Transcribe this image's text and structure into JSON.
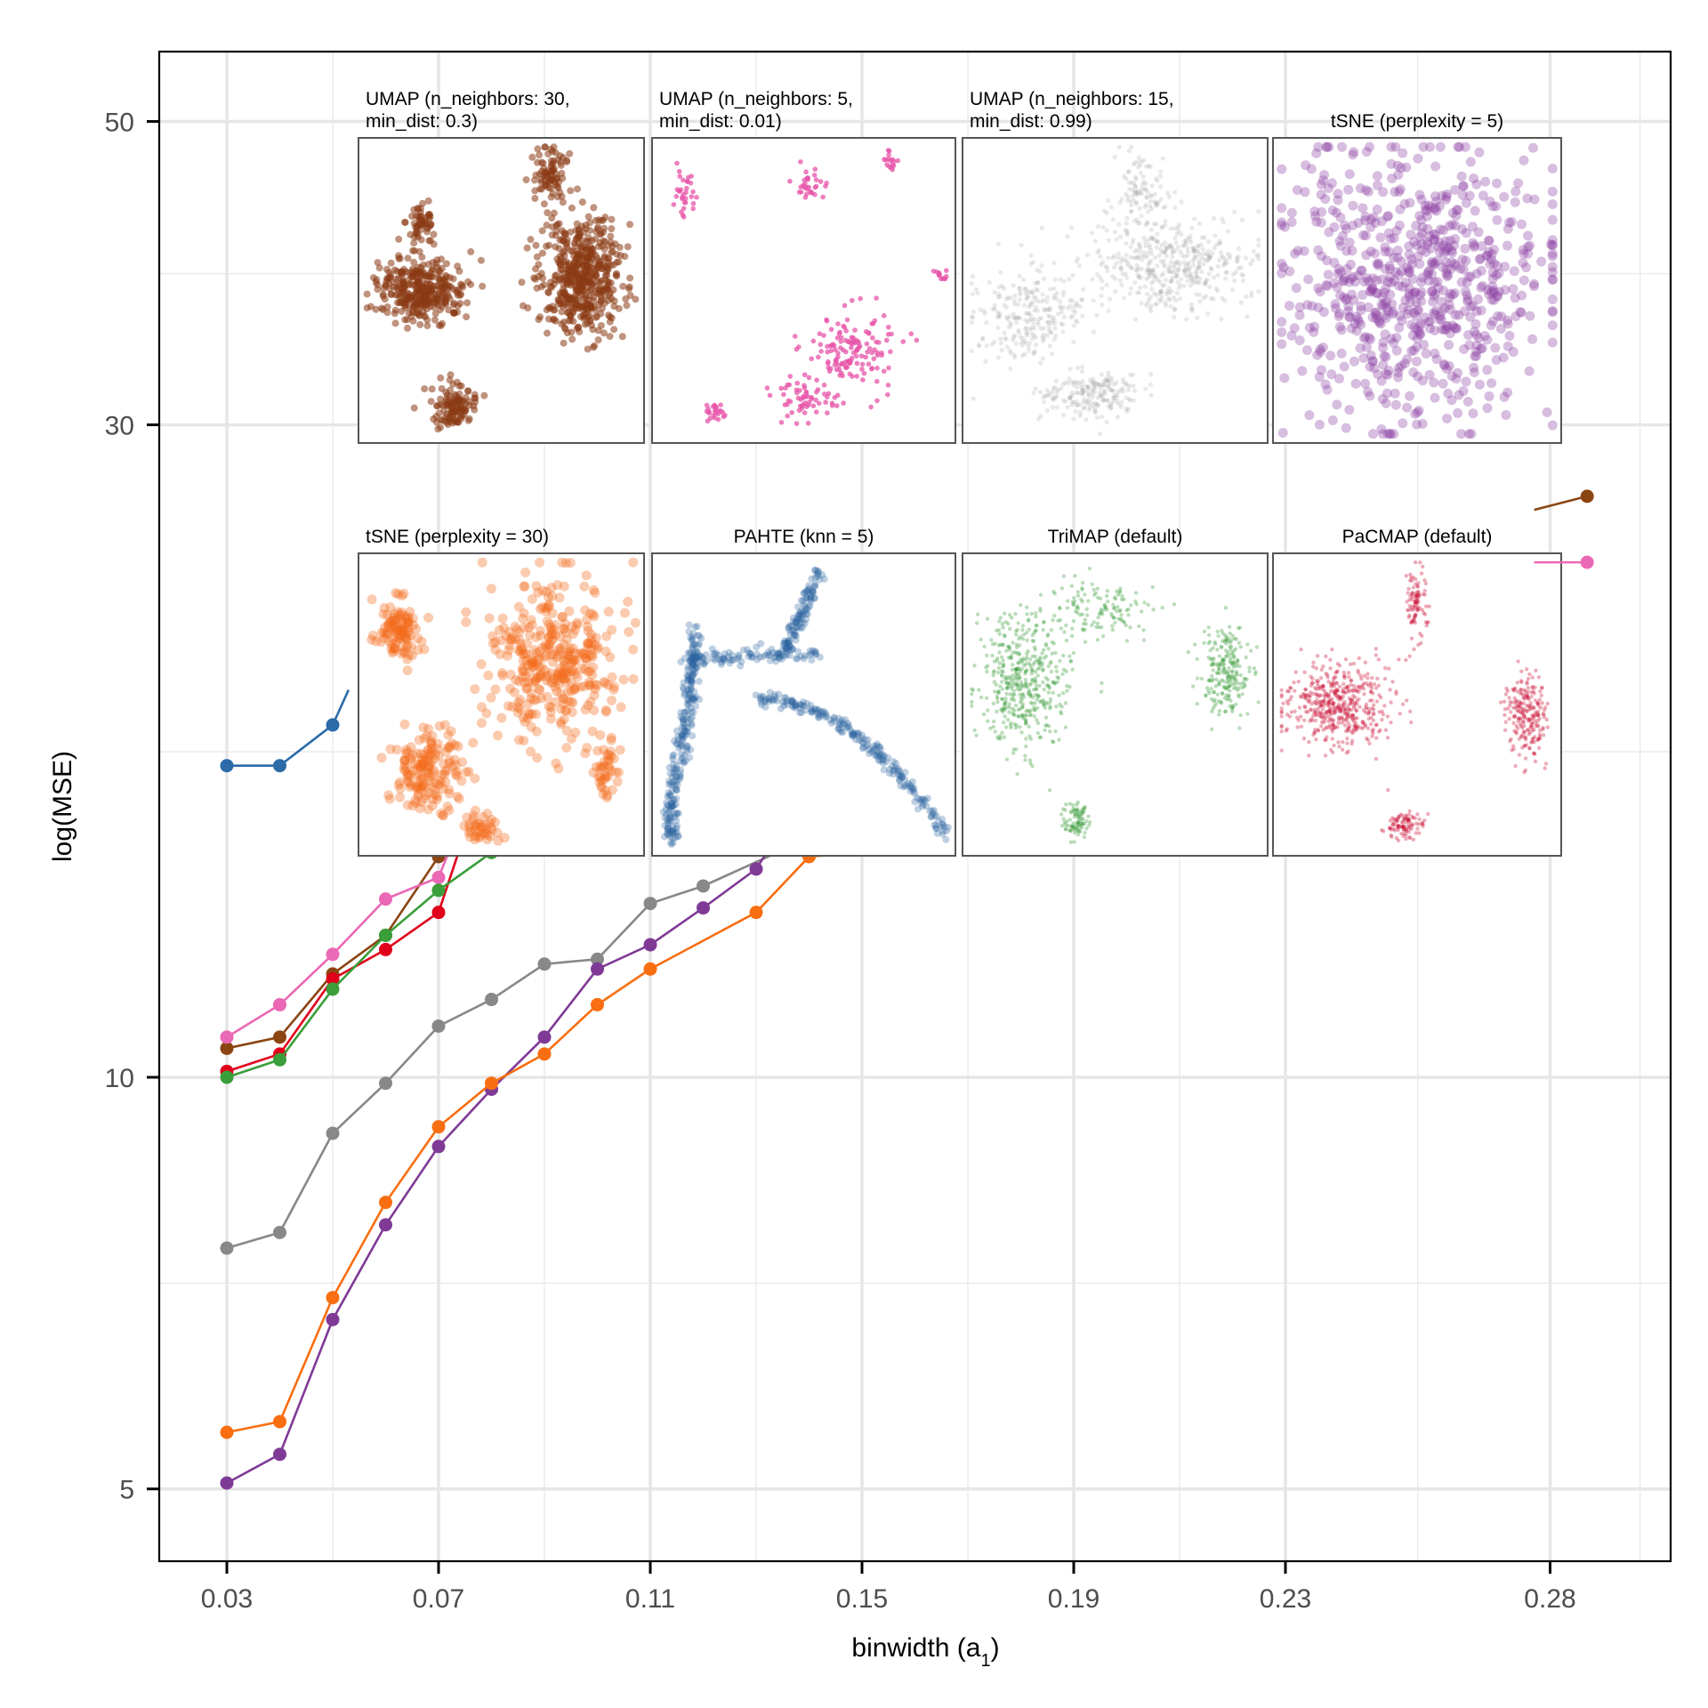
{
  "chart_data": {
    "type": "line",
    "title": "",
    "xlabel": "binwidth (a",
    "xlabel_sub": "1",
    "xlabel_close": ")",
    "ylabel": "log(MSE)",
    "y_scale": "log",
    "xlim": [
      0.02,
      0.3
    ],
    "ylim": [
      4.3,
      60
    ],
    "x_ticks": [
      0.03,
      0.07,
      0.11,
      0.15,
      0.19,
      0.23,
      0.28
    ],
    "x_tick_labels": [
      "0.03",
      "0.07",
      "0.11",
      "0.15",
      "0.19",
      "0.23",
      "0.28"
    ],
    "y_ticks": [
      5,
      10,
      30,
      50
    ],
    "y_tick_labels": [
      "5",
      "10",
      "30",
      "50"
    ],
    "y_minor_ticks": [
      7.07,
      17.3,
      38.7
    ],
    "x_minor_ticks": [
      0.05,
      0.09,
      0.13,
      0.17,
      0.21,
      0.255,
      0.297
    ],
    "grid": true,
    "legend": "none",
    "series": [
      {
        "name": "PAHTE (knn = 5)",
        "color": "#2c6aa8",
        "x": [
          0.03,
          0.04,
          0.05
        ],
        "y": [
          16.9,
          16.9,
          18.1
        ],
        "continues_to": [
          0.053,
          19.2
        ]
      },
      {
        "name": "UMAP (n_neighbors: 30, min_dist: 0.3)",
        "color": "#8b4513",
        "x": [
          0.03,
          0.04,
          0.05,
          0.06,
          0.07
        ],
        "y": [
          10.5,
          10.7,
          11.9,
          12.7,
          14.5
        ],
        "continues_to": [
          0.073,
          15.3
        ],
        "tail_x": [
          0.277,
          0.287
        ],
        "tail_y": [
          26.0,
          26.6
        ]
      },
      {
        "name": "UMAP (n_neighbors: 5, min_dist: 0.01)",
        "color": "#ea68b5",
        "x": [
          0.03,
          0.04,
          0.05,
          0.06,
          0.07
        ],
        "y": [
          10.7,
          11.3,
          12.3,
          13.5,
          14.0
        ],
        "continues_to": [
          0.074,
          15.3
        ],
        "tail_x": [
          0.277,
          0.287
        ],
        "tail_y": [
          23.8,
          23.8
        ]
      },
      {
        "name": "PaCMAP (default)",
        "color": "#e0001b",
        "x": [
          0.03,
          0.04,
          0.05,
          0.06,
          0.07
        ],
        "y": [
          10.1,
          10.4,
          11.8,
          12.4,
          13.2
        ],
        "continues_to": [
          0.0755,
          15.3
        ]
      },
      {
        "name": "TriMAP (default)",
        "color": "#3a9e3a",
        "x": [
          0.03,
          0.04,
          0.05,
          0.06,
          0.07,
          0.08
        ],
        "y": [
          10.0,
          10.3,
          11.6,
          12.7,
          13.7,
          14.6
        ],
        "continues_to": [
          0.082,
          14.9
        ]
      },
      {
        "name": "UMAP (n_neighbors: 15, min_dist: 0.99)",
        "color": "#888888",
        "x": [
          0.03,
          0.04,
          0.05,
          0.06,
          0.07,
          0.08,
          0.09,
          0.1,
          0.11,
          0.12
        ],
        "y": [
          7.5,
          7.7,
          9.1,
          9.9,
          10.9,
          11.4,
          12.1,
          12.2,
          13.4,
          13.8
        ],
        "continues_to": [
          0.134,
          14.6
        ]
      },
      {
        "name": "tSNE (perplexity = 5)",
        "color": "#7f3a96",
        "x": [
          0.03,
          0.04,
          0.05,
          0.06,
          0.07,
          0.08,
          0.09,
          0.1,
          0.11,
          0.12,
          0.13
        ],
        "y": [
          5.05,
          5.3,
          6.65,
          7.8,
          8.9,
          9.8,
          10.7,
          12.0,
          12.5,
          13.3,
          14.2
        ],
        "continues_to": [
          0.132,
          14.6
        ]
      },
      {
        "name": "tSNE (perplexity = 30)",
        "color": "#f86e11",
        "x": [
          0.03,
          0.04,
          0.05,
          0.06,
          0.07,
          0.08,
          0.09,
          0.1,
          0.11,
          0.13,
          0.14
        ],
        "y": [
          5.5,
          5.6,
          6.9,
          8.1,
          9.2,
          9.9,
          10.4,
          11.3,
          12.0,
          13.2,
          14.5
        ],
        "continues_to": [
          0.15,
          14.6
        ]
      }
    ],
    "insets": [
      {
        "title_lines": [
          "UMAP (n_neighbors: 30,",
          "min_dist: 0.3)"
        ],
        "align": "left",
        "color": "#8b3a14",
        "row": 0,
        "col": 0,
        "style": "dense",
        "clusters": [
          [
            0.22,
            0.5,
            0.14,
            0.09,
            0.3
          ],
          [
            0.22,
            0.28,
            0.05,
            0.08,
            0.05
          ],
          [
            0.78,
            0.45,
            0.13,
            0.18,
            0.45
          ],
          [
            0.67,
            0.12,
            0.05,
            0.08,
            0.07
          ],
          [
            0.34,
            0.88,
            0.07,
            0.06,
            0.1
          ]
        ]
      },
      {
        "title_lines": [
          "UMAP (n_neighbors: 5,",
          "min_dist: 0.01)"
        ],
        "align": "left",
        "color": "#e754a8",
        "row": 0,
        "col": 1,
        "style": "sparse",
        "clusters": [
          [
            0.11,
            0.18,
            0.04,
            0.06,
            0.08
          ],
          [
            0.52,
            0.15,
            0.05,
            0.06,
            0.08
          ],
          [
            0.78,
            0.08,
            0.02,
            0.03,
            0.04
          ],
          [
            0.95,
            0.45,
            0.02,
            0.02,
            0.03
          ],
          [
            0.66,
            0.69,
            0.13,
            0.12,
            0.35
          ],
          [
            0.5,
            0.85,
            0.09,
            0.06,
            0.15
          ],
          [
            0.21,
            0.9,
            0.04,
            0.03,
            0.06
          ]
        ]
      },
      {
        "title_lines": [
          "UMAP (n_neighbors: 15,",
          "min_dist: 0.99)"
        ],
        "align": "left",
        "color": "#a8a8a8",
        "row": 0,
        "col": 2,
        "style": "faint",
        "clusters": [
          [
            0.68,
            0.42,
            0.23,
            0.15,
            0.45
          ],
          [
            0.58,
            0.18,
            0.08,
            0.12,
            0.1
          ],
          [
            0.21,
            0.58,
            0.16,
            0.14,
            0.25
          ],
          [
            0.42,
            0.84,
            0.15,
            0.07,
            0.2
          ]
        ]
      },
      {
        "title_lines": [
          "tSNE (perplexity = 5)"
        ],
        "align": "center",
        "color": "#8b42a2",
        "row": 0,
        "col": 3,
        "style": "big",
        "clusters": [
          [
            0.5,
            0.48,
            0.42,
            0.4,
            1.0
          ]
        ]
      },
      {
        "title_lines": [
          "tSNE (perplexity = 30)"
        ],
        "align": "left",
        "color": "#f46a19",
        "row": 1,
        "col": 0,
        "style": "big",
        "clusters": [
          [
            0.14,
            0.25,
            0.07,
            0.09,
            0.13
          ],
          [
            0.68,
            0.35,
            0.2,
            0.24,
            0.45
          ],
          [
            0.25,
            0.72,
            0.12,
            0.12,
            0.2
          ],
          [
            0.43,
            0.91,
            0.06,
            0.04,
            0.05
          ],
          [
            0.87,
            0.72,
            0.04,
            0.08,
            0.05
          ]
        ]
      },
      {
        "title_lines": [
          "PAHTE (knn = 5)"
        ],
        "align": "center",
        "color": "#2c63a0",
        "row": 1,
        "col": 1,
        "style": "curve",
        "clusters": []
      },
      {
        "title_lines": [
          "TriMAP (default)"
        ],
        "align": "center",
        "color": "#3d9f3d",
        "row": 1,
        "col": 2,
        "style": "fine",
        "clusters": [
          [
            0.2,
            0.42,
            0.13,
            0.2,
            0.4
          ],
          [
            0.45,
            0.18,
            0.18,
            0.08,
            0.12
          ],
          [
            0.86,
            0.4,
            0.07,
            0.14,
            0.2
          ],
          [
            0.37,
            0.88,
            0.04,
            0.06,
            0.08
          ]
        ]
      },
      {
        "title_lines": [
          "PaCMAP (default)"
        ],
        "align": "center",
        "color": "#cc1037",
        "row": 1,
        "col": 3,
        "style": "fine",
        "clusters": [
          [
            0.5,
            0.16,
            0.03,
            0.11,
            0.08
          ],
          [
            0.22,
            0.5,
            0.17,
            0.12,
            0.4
          ],
          [
            0.88,
            0.54,
            0.06,
            0.13,
            0.18
          ],
          [
            0.46,
            0.9,
            0.06,
            0.04,
            0.08
          ]
        ]
      }
    ]
  }
}
